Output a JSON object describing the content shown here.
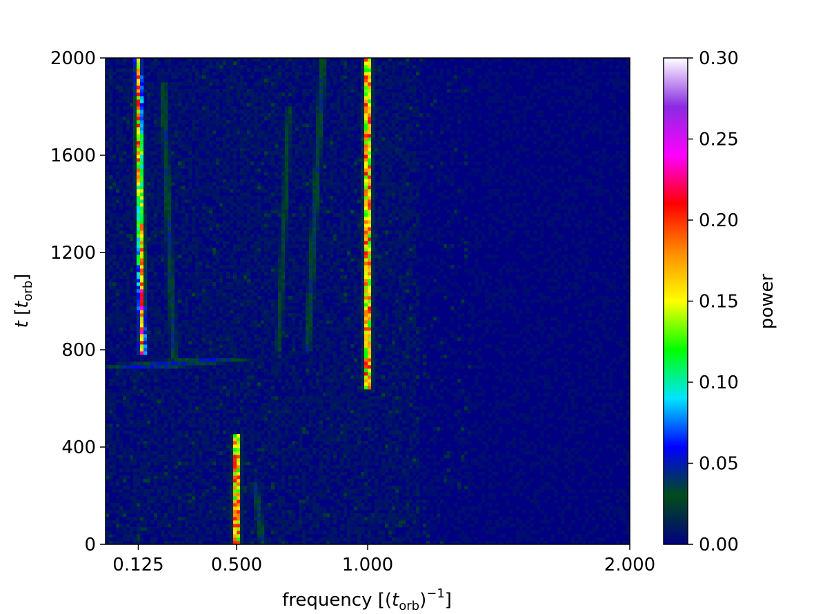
{
  "chart_data": {
    "type": "heatmap",
    "title": "",
    "xlabel": "frequency [(t_orb)^-1]",
    "ylabel": "t [t_orb]",
    "xlim": [
      0.0,
      2.0
    ],
    "ylim": [
      0,
      2000
    ],
    "x_ticks": [
      0.125,
      0.5,
      1.0,
      2.0
    ],
    "x_tick_labels": [
      "0.125",
      "0.500",
      "1.000",
      "2.000"
    ],
    "y_ticks": [
      0,
      400,
      800,
      1200,
      1600,
      2000
    ],
    "y_tick_labels": [
      "0",
      "400",
      "800",
      "1200",
      "1600",
      "2000"
    ],
    "colorbar": {
      "label": "power",
      "range": [
        0.0,
        0.3
      ],
      "ticks": [
        0.0,
        0.05,
        0.1,
        0.15,
        0.2,
        0.25,
        0.3
      ],
      "tick_labels": [
        "0.00",
        "0.05",
        "0.10",
        "0.15",
        "0.20",
        "0.25",
        "0.30"
      ],
      "colormap": "gist_ncar-like",
      "color_stops": [
        "#000080",
        "#004c1a",
        "#0000ff",
        "#00e5ff",
        "#00ff00",
        "#ffff00",
        "#ff8c00",
        "#ff0000",
        "#ff00ff",
        "#8a2be2",
        "#ffffff"
      ]
    },
    "background_power": 0.005,
    "features": [
      {
        "freq_start": 0.14,
        "freq_end": 0.125,
        "t_start": 780,
        "t_end": 2000,
        "peak_power": 0.24
      },
      {
        "freq_start": 0.145,
        "freq_end": 0.4,
        "t_start": 730,
        "t_end": 760,
        "peak_power": 0.07
      },
      {
        "freq_start": 0.26,
        "freq_end": 0.22,
        "t_start": 760,
        "t_end": 1900,
        "peak_power": 0.05
      },
      {
        "freq_start": 0.66,
        "freq_end": 0.7,
        "t_start": 800,
        "t_end": 1800,
        "peak_power": 0.04
      },
      {
        "freq_start": 0.77,
        "freq_end": 0.83,
        "t_start": 800,
        "t_end": 2000,
        "peak_power": 0.05
      },
      {
        "freq_start": 1.0,
        "freq_end": 1.0,
        "t_start": 640,
        "t_end": 2000,
        "peak_power": 0.29
      },
      {
        "freq_start": 0.5,
        "freq_end": 0.5,
        "t_start": 0,
        "t_end": 450,
        "peak_power": 0.28
      },
      {
        "freq_start": 0.6,
        "freq_end": 0.57,
        "t_start": 0,
        "t_end": 250,
        "peak_power": 0.05
      }
    ]
  }
}
